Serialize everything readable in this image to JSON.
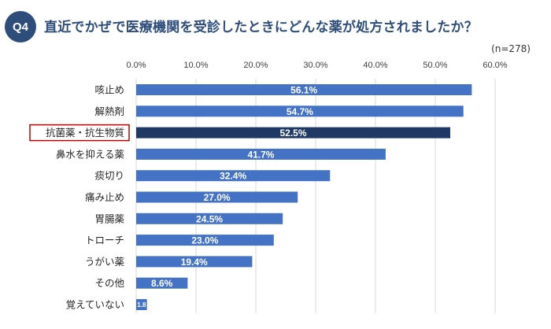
{
  "header": {
    "badge": "Q4",
    "title": "直近でかぜで医療機関を受診したときにどんな薬が処方されましたか？",
    "sample_size": "(n=278)"
  },
  "colors": {
    "bar": "#4472c4",
    "bar_highlight": "#1f3864",
    "highlight_border": "#c00000",
    "badge": "#2e4d7b",
    "grid": "#d9d9d9"
  },
  "chart_data": {
    "type": "bar",
    "orientation": "horizontal",
    "categories": [
      "咳止め",
      "解熱剤",
      "抗菌薬・抗生物質",
      "鼻水を抑える薬",
      "痰切り",
      "痛み止め",
      "胃腸薬",
      "トローチ",
      "うがい薬",
      "その他",
      "覚えていない"
    ],
    "values": [
      56.1,
      54.7,
      52.5,
      41.7,
      32.4,
      27.0,
      24.5,
      23.0,
      19.4,
      8.6,
      1.8
    ],
    "data_labels": [
      "56.1%",
      "54.7%",
      "52.5%",
      "41.7%",
      "32.4%",
      "27.0%",
      "24.5%",
      "23.0%",
      "19.4%",
      "8.6%",
      "1.8"
    ],
    "highlighted_category": "抗菌薬・抗生物質",
    "xlim": [
      0,
      60
    ],
    "xticks": [
      "0.0%",
      "10.0%",
      "20.0%",
      "30.0%",
      "40.0%",
      "50.0%",
      "60.0%"
    ],
    "grid": true,
    "legend": "none"
  }
}
